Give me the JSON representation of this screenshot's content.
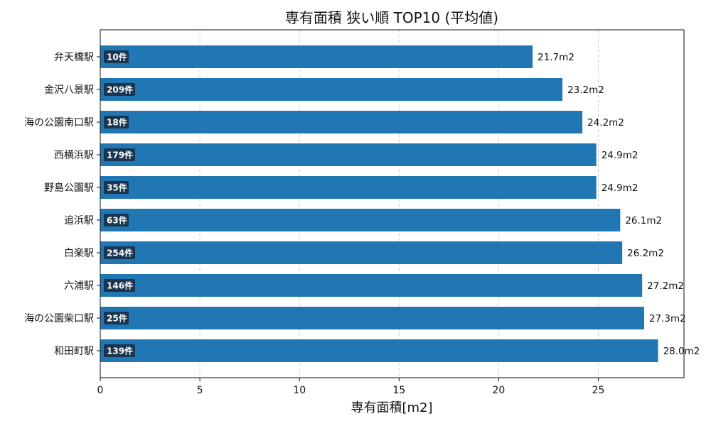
{
  "chart_data": {
    "type": "bar",
    "orientation": "horizontal",
    "title": "専有面積 狭い順 TOP10 (平均値)",
    "xlabel": "専有面積[m2]",
    "ylabel": "",
    "xlim": [
      0,
      29.3
    ],
    "xticks": [
      0,
      5,
      10,
      15,
      20,
      25
    ],
    "grid": "vertical-dashed",
    "bar_color": "#2077b4",
    "badge_color": "#1a3550",
    "value_suffix": "m2",
    "categories": [
      "弁天橋駅",
      "金沢八景駅",
      "海の公園南口駅",
      "西横浜駅",
      "野島公園駅",
      "追浜駅",
      "白楽駅",
      "六浦駅",
      "海の公園柴口駅",
      "和田町駅"
    ],
    "values": [
      21.7,
      23.2,
      24.2,
      24.9,
      24.9,
      26.1,
      26.2,
      27.2,
      27.3,
      28.0
    ],
    "value_labels": [
      "21.7m2",
      "23.2m2",
      "24.2m2",
      "24.9m2",
      "24.9m2",
      "26.1m2",
      "26.2m2",
      "27.2m2",
      "27.3m2",
      "28.0m2"
    ],
    "counts": [
      "10件",
      "209件",
      "18件",
      "179件",
      "35件",
      "63件",
      "254件",
      "146件",
      "25件",
      "139件"
    ]
  }
}
